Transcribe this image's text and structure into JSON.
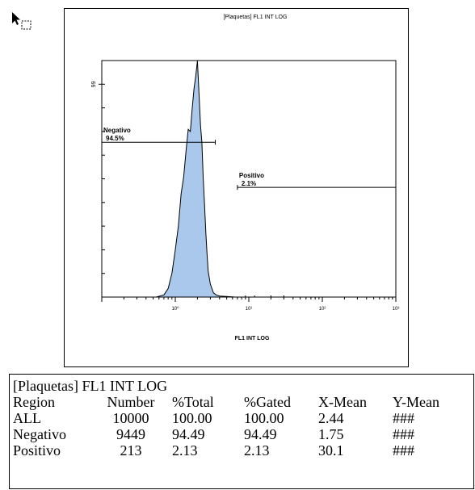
{
  "chart_data": {
    "type": "area",
    "title": "[Plaquetas] FL1 INT LOG",
    "xlabel": "FL1 INT LOG",
    "x_scale": "log",
    "xlim": [
      0.1,
      1000
    ],
    "ylim": [
      0,
      110
    ],
    "y_ticks": [
      {
        "value": 99,
        "label": "99"
      }
    ],
    "x_ticks": [
      {
        "value": 1,
        "label": "10⁰"
      },
      {
        "value": 10,
        "label": "10¹"
      },
      {
        "value": 100,
        "label": "10²"
      },
      {
        "value": 1000,
        "label": "10³"
      }
    ],
    "grid": false,
    "fill_color": "#a9c8ec",
    "line_color": "#000000",
    "series": [
      {
        "x": [
          0.55,
          0.7,
          0.8,
          0.9,
          1.0,
          1.1,
          1.2,
          1.3,
          1.4,
          1.5,
          1.6,
          1.7,
          1.8,
          1.9,
          2.0,
          2.1,
          2.2,
          2.3,
          2.4,
          2.5,
          2.6,
          2.7,
          2.8,
          3.0,
          3.3,
          3.6,
          4.0,
          5.0,
          6.5
        ],
        "values": [
          0,
          1,
          4,
          11,
          22,
          33,
          48,
          56,
          68,
          78,
          77,
          88,
          97,
          103,
          110,
          95,
          80,
          72,
          55,
          43,
          30,
          20,
          12,
          6,
          2,
          1,
          0.5,
          0.3,
          0
        ]
      }
    ],
    "sparse_events": [
      {
        "x": 9,
        "y": 0.4
      },
      {
        "x": 12,
        "y": 0.3
      },
      {
        "x": 20,
        "y": 0.3
      },
      {
        "x": 30,
        "y": 0.2
      }
    ],
    "regions": [
      {
        "name": "Negativo",
        "percent_label": "94.5%",
        "x_start": 0.1,
        "x_end": 3.5,
        "y": 72
      },
      {
        "name": "Positivo",
        "percent_label": "2.1%",
        "x_start": 7.0,
        "x_end": 1000,
        "y": 51
      }
    ]
  },
  "stats": {
    "title": "[Plaquetas] FL1 INT LOG",
    "headers": [
      "Region",
      "Number",
      "%Total",
      "%Gated",
      "X-Mean",
      "Y-Mean"
    ],
    "rows": [
      [
        "ALL",
        "10000",
        "100.00",
        "100.00",
        "2.44",
        "###"
      ],
      [
        "Negativo",
        "9449",
        "94.49",
        "94.49",
        "1.75",
        "###"
      ],
      [
        "Positivo",
        "213",
        "2.13",
        "2.13",
        "30.1",
        "###"
      ]
    ]
  }
}
